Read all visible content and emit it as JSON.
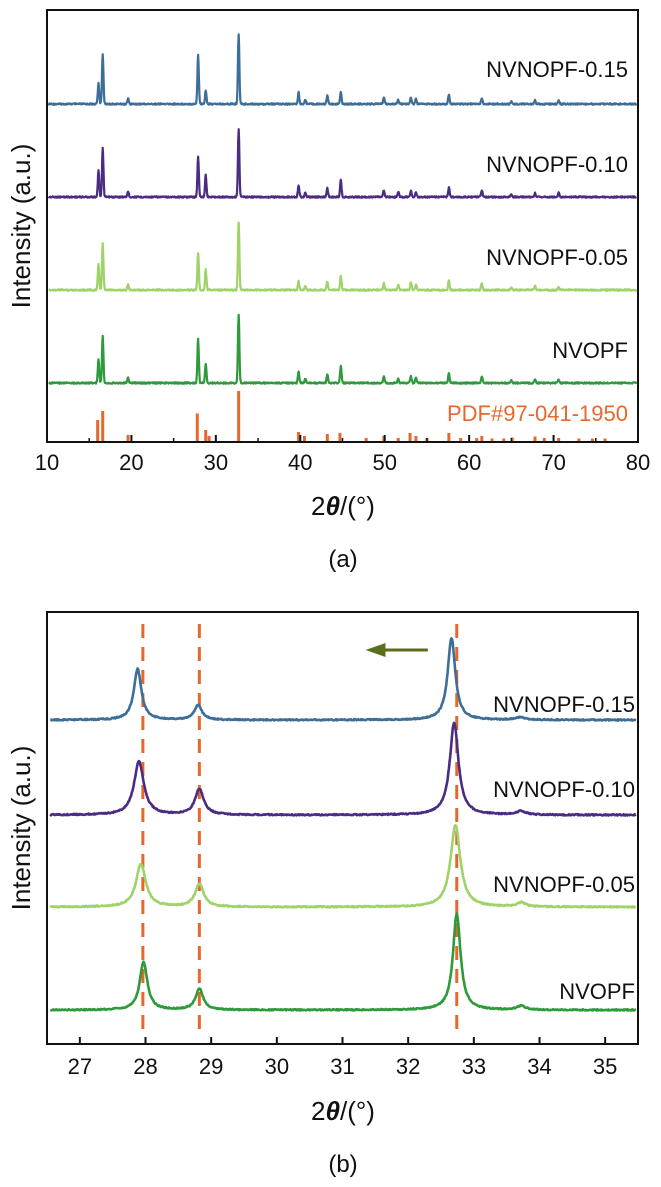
{
  "colors": {
    "NVNOPF-0.15": "#3d6e98",
    "NVNOPF-0.10": "#4b2c82",
    "NVNOPF-0.05": "#9fd36a",
    "NVOPF": "#2e9a3c",
    "reference": "#e8672a",
    "arrow": "#5b6e1e",
    "axis": "#111111"
  },
  "chart_data": [
    {
      "type": "line",
      "panel_label": "(a)",
      "xlabel_prefix": "2",
      "xlabel_theta": "θ",
      "xlabel_suffix": "/(°)",
      "ylabel": "Intensity (a.u.)",
      "xlim": [
        10,
        80
      ],
      "xticks": [
        10,
        20,
        30,
        40,
        50,
        60,
        70,
        80
      ],
      "yticks": [],
      "grid": false,
      "legend": "labels placed at right end of each trace",
      "series": [
        {
          "name": "NVNOPF-0.15",
          "color_key": "NVNOPF-0.15",
          "baseline": 0.0,
          "peaks": [
            [
              16.1,
              0.3
            ],
            [
              16.6,
              0.72
            ],
            [
              19.6,
              0.08
            ],
            [
              27.9,
              0.7
            ],
            [
              28.8,
              0.2
            ],
            [
              32.7,
              1.0
            ],
            [
              39.8,
              0.17
            ],
            [
              40.6,
              0.06
            ],
            [
              43.2,
              0.13
            ],
            [
              44.8,
              0.17
            ],
            [
              49.9,
              0.1
            ],
            [
              51.6,
              0.06
            ],
            [
              53.1,
              0.09
            ],
            [
              53.7,
              0.07
            ],
            [
              57.6,
              0.14
            ],
            [
              61.5,
              0.08
            ],
            [
              65.0,
              0.04
            ],
            [
              67.8,
              0.05
            ],
            [
              70.6,
              0.05
            ]
          ]
        },
        {
          "name": "NVNOPF-0.10",
          "color_key": "NVNOPF-0.10",
          "baseline": 0.0,
          "peaks": [
            [
              16.1,
              0.4
            ],
            [
              16.6,
              0.72
            ],
            [
              19.6,
              0.08
            ],
            [
              27.9,
              0.6
            ],
            [
              28.8,
              0.33
            ],
            [
              32.7,
              1.0
            ],
            [
              39.8,
              0.17
            ],
            [
              40.6,
              0.06
            ],
            [
              43.2,
              0.13
            ],
            [
              44.8,
              0.25
            ],
            [
              49.9,
              0.1
            ],
            [
              51.6,
              0.08
            ],
            [
              53.1,
              0.09
            ],
            [
              53.7,
              0.07
            ],
            [
              57.6,
              0.14
            ],
            [
              61.5,
              0.1
            ],
            [
              65.0,
              0.04
            ],
            [
              67.8,
              0.06
            ],
            [
              70.6,
              0.06
            ]
          ]
        },
        {
          "name": "NVNOPF-0.05",
          "color_key": "NVNOPF-0.05",
          "baseline": 0.0,
          "peaks": [
            [
              16.1,
              0.38
            ],
            [
              16.6,
              0.68
            ],
            [
              19.6,
              0.08
            ],
            [
              27.9,
              0.55
            ],
            [
              28.8,
              0.3
            ],
            [
              32.7,
              1.0
            ],
            [
              39.8,
              0.13
            ],
            [
              40.6,
              0.06
            ],
            [
              43.2,
              0.13
            ],
            [
              44.8,
              0.2
            ],
            [
              49.9,
              0.1
            ],
            [
              51.6,
              0.08
            ],
            [
              53.1,
              0.12
            ],
            [
              53.7,
              0.08
            ],
            [
              57.6,
              0.14
            ],
            [
              61.5,
              0.1
            ],
            [
              65.0,
              0.04
            ],
            [
              67.8,
              0.06
            ],
            [
              70.6,
              0.05
            ]
          ]
        },
        {
          "name": "NVOPF",
          "color_key": "NVOPF",
          "baseline": 0.0,
          "peaks": [
            [
              16.1,
              0.35
            ],
            [
              16.6,
              0.7
            ],
            [
              19.6,
              0.08
            ],
            [
              27.9,
              0.65
            ],
            [
              28.8,
              0.28
            ],
            [
              32.7,
              1.0
            ],
            [
              39.8,
              0.17
            ],
            [
              40.6,
              0.06
            ],
            [
              43.2,
              0.13
            ],
            [
              44.8,
              0.25
            ],
            [
              49.9,
              0.1
            ],
            [
              51.6,
              0.06
            ],
            [
              53.1,
              0.1
            ],
            [
              53.7,
              0.07
            ],
            [
              57.6,
              0.14
            ],
            [
              61.5,
              0.1
            ],
            [
              65.0,
              0.04
            ],
            [
              67.8,
              0.06
            ],
            [
              70.6,
              0.05
            ]
          ]
        }
      ],
      "reference": {
        "name": "PDF#97-041-1950",
        "color_key": "reference",
        "sticks": [
          [
            16.0,
            0.42
          ],
          [
            16.6,
            0.6
          ],
          [
            19.6,
            0.12
          ],
          [
            27.8,
            0.55
          ],
          [
            28.8,
            0.22
          ],
          [
            29.2,
            0.1
          ],
          [
            32.7,
            1.0
          ],
          [
            39.8,
            0.18
          ],
          [
            40.5,
            0.1
          ],
          [
            43.2,
            0.14
          ],
          [
            44.7,
            0.16
          ],
          [
            47.8,
            0.06
          ],
          [
            49.9,
            0.1
          ],
          [
            51.6,
            0.06
          ],
          [
            53.0,
            0.16
          ],
          [
            53.7,
            0.1
          ],
          [
            55.0,
            0.06
          ],
          [
            57.6,
            0.16
          ],
          [
            59.0,
            0.06
          ],
          [
            60.9,
            0.06
          ],
          [
            61.5,
            0.1
          ],
          [
            62.7,
            0.05
          ],
          [
            64.1,
            0.05
          ],
          [
            65.1,
            0.07
          ],
          [
            67.8,
            0.09
          ],
          [
            68.9,
            0.06
          ],
          [
            70.6,
            0.06
          ],
          [
            73.0,
            0.05
          ],
          [
            74.6,
            0.05
          ],
          [
            76.1,
            0.05
          ]
        ]
      }
    },
    {
      "type": "line",
      "panel_label": "(b)",
      "xlabel_prefix": "2",
      "xlabel_theta": "θ",
      "xlabel_suffix": "/(°)",
      "ylabel": "Intensity (a.u.)",
      "xlim": [
        26.5,
        35.5
      ],
      "xticks": [
        27,
        28,
        29,
        30,
        31,
        32,
        33,
        34,
        35
      ],
      "yticks": [],
      "grid": false,
      "legend": "labels placed at right end of each trace",
      "reference_lines_x": [
        27.96,
        28.82,
        32.74
      ],
      "shift_arrow": {
        "from_x": 32.3,
        "to_x": 31.35,
        "direction": "left"
      },
      "series": [
        {
          "name": "NVNOPF-0.15",
          "color_key": "NVNOPF-0.15",
          "peaks": [
            [
              27.88,
              0.62,
              0.07
            ],
            [
              28.8,
              0.18,
              0.07
            ],
            [
              32.66,
              1.0,
              0.07
            ],
            [
              33.7,
              0.03,
              0.08
            ]
          ]
        },
        {
          "name": "NVNOPF-0.10",
          "color_key": "NVNOPF-0.10",
          "peaks": [
            [
              27.9,
              0.58,
              0.09
            ],
            [
              28.82,
              0.28,
              0.08
            ],
            [
              32.7,
              1.0,
              0.08
            ],
            [
              33.72,
              0.04,
              0.08
            ]
          ]
        },
        {
          "name": "NVNOPF-0.05",
          "color_key": "NVNOPF-0.05",
          "peaks": [
            [
              27.93,
              0.52,
              0.09
            ],
            [
              28.82,
              0.28,
              0.08
            ],
            [
              32.72,
              1.0,
              0.09
            ],
            [
              33.72,
              0.05,
              0.08
            ]
          ]
        },
        {
          "name": "NVOPF",
          "color_key": "NVOPF",
          "peaks": [
            [
              27.97,
              0.5,
              0.07
            ],
            [
              28.82,
              0.22,
              0.07
            ],
            [
              32.74,
              1.0,
              0.07
            ],
            [
              33.72,
              0.04,
              0.08
            ]
          ]
        }
      ]
    }
  ]
}
